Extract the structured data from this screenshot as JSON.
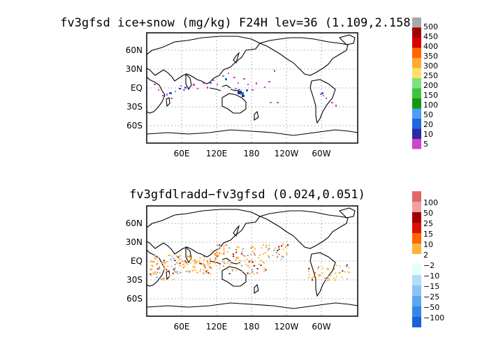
{
  "panel1": {
    "title": "fv3gfsd ice+snow (mg/kg) F24H lev=36 (1.109,2.158)",
    "lat_ticks": [
      "60N",
      "30N",
      "EQ",
      "30S",
      "60S"
    ],
    "lon_ticks": [
      "60E",
      "120E",
      "180",
      "120W",
      "60W"
    ],
    "colorbar": {
      "labels": [
        "500",
        "450",
        "400",
        "350",
        "300",
        "250",
        "200",
        "150",
        "100",
        "50",
        "20",
        "10",
        "5"
      ],
      "colors": [
        "#a8a8a8",
        "#a00000",
        "#d80000",
        "#ff6600",
        "#ffaa33",
        "#ffe066",
        "#7ee07e",
        "#3cc43c",
        "#149614",
        "#4a9ff0",
        "#2266dd",
        "#2a2aa8",
        "#cc44cc"
      ]
    }
  },
  "panel2": {
    "title": "fv3gfdlradd−fv3gfsd (0.024,0.051)",
    "lat_ticks": [
      "60N",
      "30N",
      "EQ",
      "30S",
      "60S"
    ],
    "lon_ticks": [
      "60E",
      "120E",
      "180",
      "120W",
      "60W"
    ],
    "colorbar": {
      "labels": [
        "100",
        "50",
        "25",
        "15",
        "10",
        "2",
        "−2",
        "−10",
        "−15",
        "−25",
        "−50",
        "−100"
      ],
      "colors": [
        "#e06868",
        "#f0a0a0",
        "#a00000",
        "#dd1100",
        "#ff6600",
        "#ffb43c",
        "#ffffff",
        "#e0ffff",
        "#b4dcf8",
        "#8cc4f4",
        "#5aa8ee",
        "#3288e6",
        "#1a60d8"
      ]
    }
  }
}
